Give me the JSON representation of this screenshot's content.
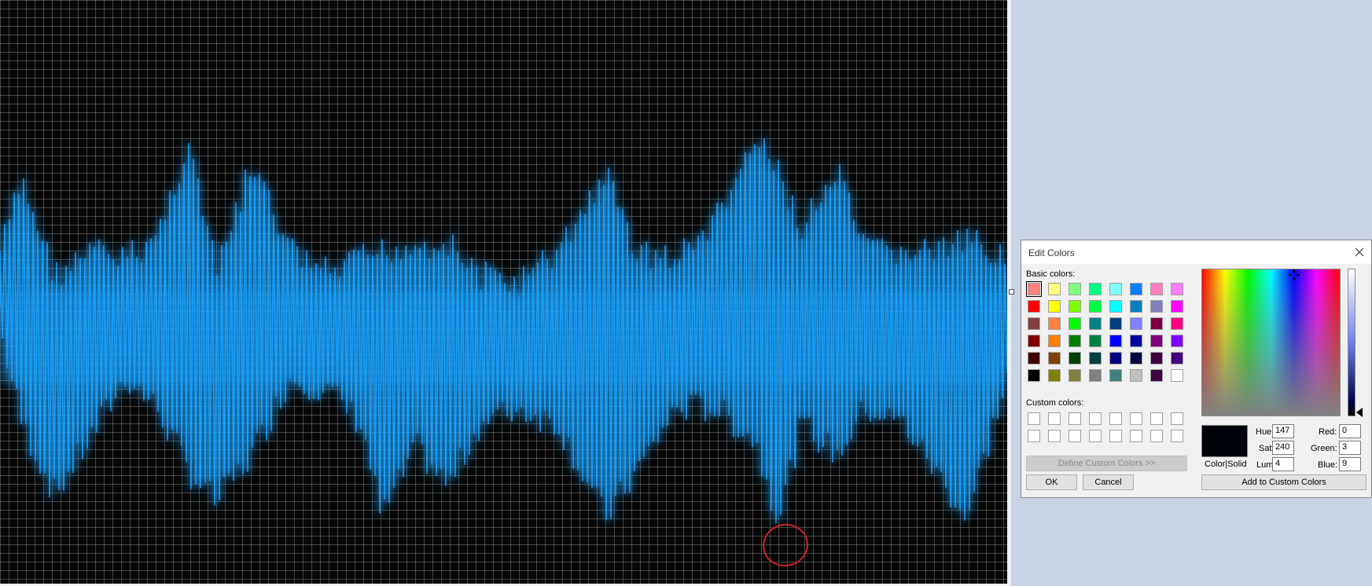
{
  "dialog": {
    "title": "Edit Colors",
    "basic_colors_label": "Basic colors:",
    "custom_colors_label": "Custom colors:",
    "define_custom_label": "Define Custom Colors >>",
    "ok_label": "OK",
    "cancel_label": "Cancel",
    "add_custom_label": "Add to Custom Colors",
    "color_solid_label": "Color|Solid",
    "hue_label": "Hue:",
    "sat_label": "Sat:",
    "lum_label": "Lum:",
    "red_label": "Red:",
    "green_label": "Green:",
    "blue_label": "Blue:",
    "hue": "147",
    "sat": "240",
    "lum": "4",
    "red": "0",
    "green": "3",
    "blue": "9",
    "preview_color": "#000309",
    "basic_colors": [
      "#ff8080",
      "#ffff80",
      "#80ff80",
      "#00ff80",
      "#80ffff",
      "#0080ff",
      "#ff80c0",
      "#ff80ff",
      "#ff0000",
      "#ffff00",
      "#80ff00",
      "#00ff40",
      "#00ffff",
      "#0080c0",
      "#8080c0",
      "#ff00ff",
      "#804040",
      "#ff8040",
      "#00ff00",
      "#008080",
      "#004080",
      "#8080ff",
      "#800040",
      "#ff0080",
      "#800000",
      "#ff8000",
      "#008000",
      "#008040",
      "#0000ff",
      "#0000a0",
      "#800080",
      "#8000ff",
      "#400000",
      "#804000",
      "#004000",
      "#004040",
      "#000080",
      "#000040",
      "#400040",
      "#400080",
      "#000000",
      "#808000",
      "#808040",
      "#808080",
      "#408080",
      "#c0c0c0",
      "#400040",
      "#ffffff"
    ],
    "selected_basic_index": 0,
    "custom_colors_count": 16
  },
  "canvas": {
    "background_color": "#070707",
    "wave_color": "#1aa3ff"
  }
}
